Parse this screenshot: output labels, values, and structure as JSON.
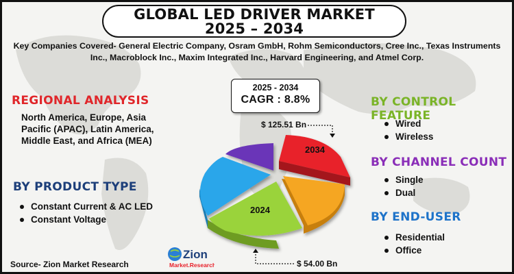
{
  "header": {
    "title_line1": "GLOBAL LED DRIVER MARKET",
    "title_line2": "2025 – 2034"
  },
  "companies": "Key Companies Covered- General Electric Company, Osram GmbH, Rohm Semiconductors, Cree Inc., Texas Instruments Inc., Macroblock Inc., Maxim Integrated Inc., Harvard Engineering, and Atmel Corp.",
  "regional": {
    "title": "REGIONAL ANALYSIS",
    "text": "North America, Europe, Asia Pacific (APAC), Latin America, Middle East, and Africa (MEA)"
  },
  "product_type": {
    "title": "BY PRODUCT TYPE",
    "items": [
      "Constant Current & AC LED",
      "Constant Voltage"
    ]
  },
  "cagr": {
    "period": "2025 - 2034",
    "value": "CAGR : 8.8%"
  },
  "pie": {
    "label_2034": "2034",
    "label_2024": "2024",
    "value_2034": "$ 125.51 Bn",
    "value_2024": "$ 54.00 Bn"
  },
  "control_feature": {
    "title": "BY CONTROL FEATURE",
    "items": [
      "Wired",
      "Wireless"
    ]
  },
  "channel_count": {
    "title": "BY CHANNEL COUNT",
    "items": [
      "Single",
      "Dual"
    ]
  },
  "end_user": {
    "title": "BY END-USER",
    "items": [
      "Residential",
      "Office"
    ]
  },
  "source": "Source- Zion Market Research",
  "logo": {
    "text_main": "Zion",
    "text_sub": "Market.Research"
  },
  "colors": {
    "red": "#e0262a",
    "navy": "#1d3f7a",
    "green": "#7ab427",
    "purple": "#8a2eb8",
    "blue": "#1e73c9",
    "slice_red": "#e8202a",
    "slice_orange": "#f5a623",
    "slice_green": "#9ad33a",
    "slice_blue": "#2aa6ea",
    "slice_purple": "#6a34b8"
  }
}
